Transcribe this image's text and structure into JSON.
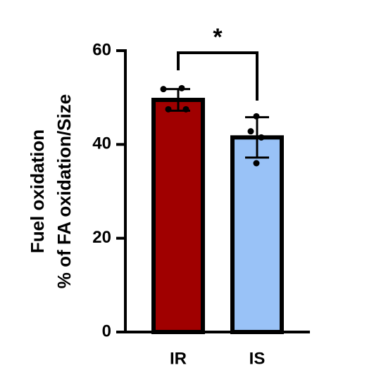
{
  "chart_data": {
    "type": "bar",
    "y_label_lines": [
      "Fuel oxidation",
      "% of FA oxidation/Size"
    ],
    "categories": [
      "IR",
      "IS"
    ],
    "values": [
      49.5,
      41.5
    ],
    "errors": [
      2.3,
      4.3
    ],
    "colors": [
      "#a00000",
      "#99c2f7"
    ],
    "points": [
      [
        51.8,
        52,
        47.5,
        47.5
      ],
      [
        46,
        42.8,
        41.5,
        36
      ]
    ],
    "ylim": [
      0,
      60
    ],
    "yticks": [
      0,
      20,
      40,
      60
    ],
    "annotation": "*"
  }
}
